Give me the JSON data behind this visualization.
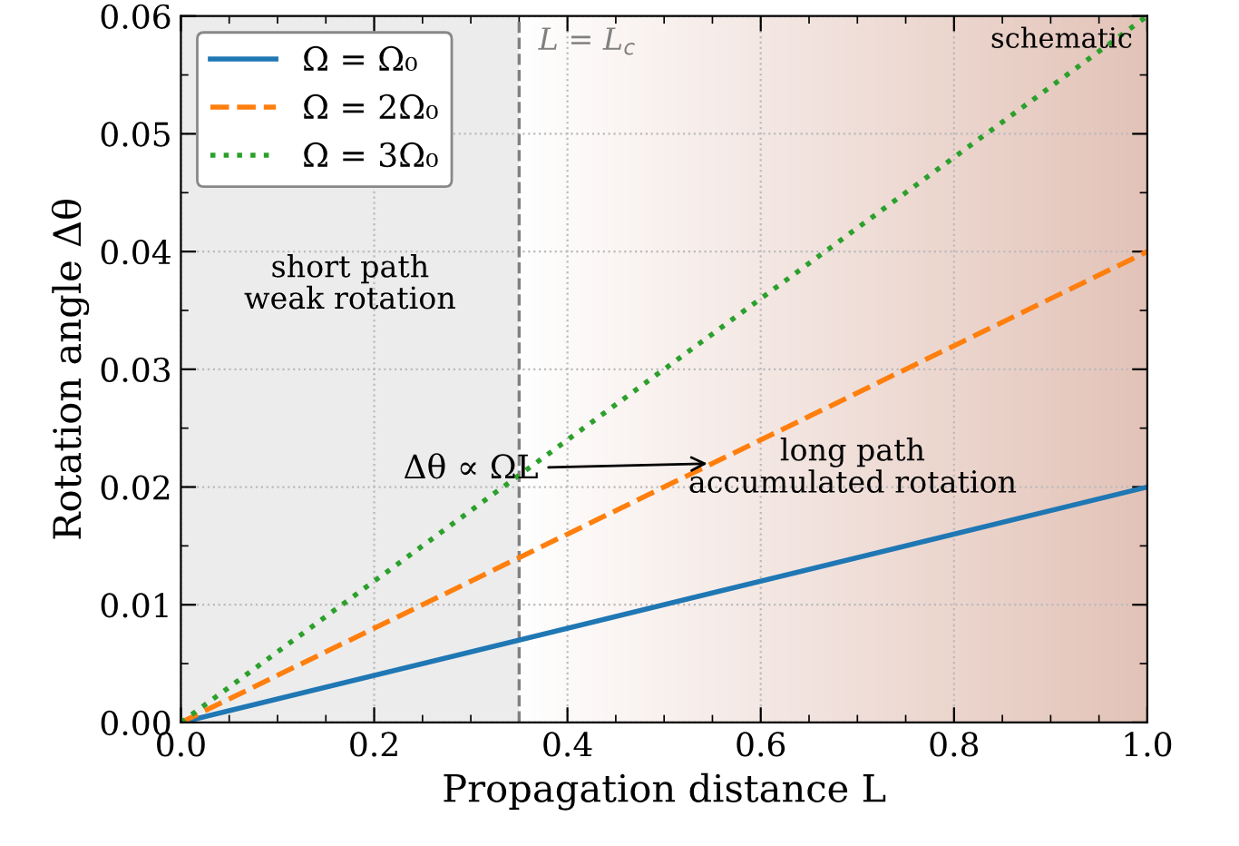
{
  "chart_data": {
    "type": "line",
    "xlabel": "Propagation distance L",
    "ylabel": "Rotation angle Δθ",
    "x": [
      0.0,
      1.0
    ],
    "series": [
      {
        "name": "Ω = Ω₀",
        "color": "#1f77b4",
        "values": [
          0.0,
          0.02
        ],
        "line_style": "solid"
      },
      {
        "name": "Ω = 2Ω₀",
        "color": "#ff7f0e",
        "values": [
          0.0,
          0.04
        ],
        "line_style": "dashed"
      },
      {
        "name": "Ω = 3Ω₀",
        "color": "#2ca02c",
        "values": [
          0.0,
          0.06
        ],
        "line_style": "dotted"
      }
    ],
    "xlim": [
      0.0,
      1.0
    ],
    "ylim": [
      0.0,
      0.06
    ],
    "xticks": [
      {
        "value": 0.0,
        "label": "0.0"
      },
      {
        "value": 0.2,
        "label": "0.2"
      },
      {
        "value": 0.4,
        "label": "0.4"
      },
      {
        "value": 0.6,
        "label": "0.6"
      },
      {
        "value": 0.8,
        "label": "0.8"
      },
      {
        "value": 1.0,
        "label": "1.0"
      }
    ],
    "yticks": [
      {
        "value": 0.0,
        "label": "0.00"
      },
      {
        "value": 0.01,
        "label": "0.01"
      },
      {
        "value": 0.02,
        "label": "0.02"
      },
      {
        "value": 0.03,
        "label": "0.03"
      },
      {
        "value": 0.04,
        "label": "0.04"
      },
      {
        "value": 0.05,
        "label": "0.05"
      },
      {
        "value": 0.06,
        "label": "0.06"
      }
    ],
    "ref_lines": [
      {
        "axis": "x",
        "value": 0.35,
        "label": "L = L$_{c}$",
        "color": "#808080",
        "line_style": "dashed"
      }
    ],
    "bands": [
      {
        "axis": "x",
        "from": 0.0,
        "to": 0.35,
        "label": "short path\nweak rotation",
        "color": "#ececec"
      },
      {
        "axis": "x",
        "from": 0.35,
        "to": 1.0,
        "label": "long path\naccumulated rotation",
        "color": "#e3c3b8"
      }
    ],
    "annotations": [
      "schematic",
      {
        "text": "Δθ ∝ ΩL",
        "x": 0.55,
        "y": 0.022
      }
    ],
    "grid": true,
    "legend": "top left"
  }
}
